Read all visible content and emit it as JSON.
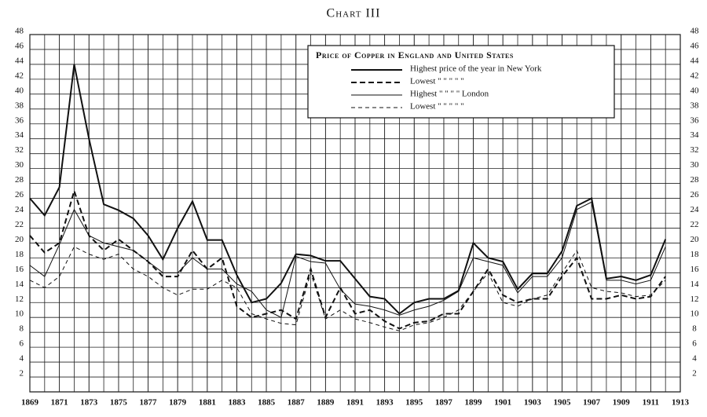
{
  "chart_data": {
    "type": "line",
    "title": "Chart III",
    "legend_title": "Price of Copper in England and United States",
    "x": [
      1869,
      1870,
      1871,
      1872,
      1873,
      1874,
      1875,
      1876,
      1877,
      1878,
      1879,
      1880,
      1881,
      1882,
      1883,
      1884,
      1885,
      1886,
      1887,
      1888,
      1889,
      1890,
      1891,
      1892,
      1893,
      1894,
      1895,
      1896,
      1897,
      1898,
      1899,
      1900,
      1901,
      1902,
      1903,
      1904,
      1905,
      1906,
      1907,
      1908,
      1909,
      1910,
      1911,
      1912
    ],
    "xlim": [
      1869,
      1913
    ],
    "xticks": [
      1869,
      1871,
      1873,
      1875,
      1877,
      1879,
      1881,
      1883,
      1885,
      1887,
      1889,
      1891,
      1893,
      1895,
      1897,
      1899,
      1901,
      1903,
      1905,
      1907,
      1909,
      1911,
      1913
    ],
    "ylim": [
      0,
      48
    ],
    "yticks": [
      2,
      4,
      6,
      8,
      10,
      12,
      14,
      16,
      18,
      20,
      22,
      24,
      26,
      28,
      30,
      32,
      34,
      36,
      38,
      40,
      42,
      44,
      46,
      48
    ],
    "grid": true,
    "legend": "upper right",
    "series": [
      {
        "name": "Highest price of the year in New York",
        "color": "#111111",
        "width": 2,
        "dash": false,
        "values": [
          26,
          23.7,
          27.5,
          44,
          34,
          25.2,
          24.4,
          23.3,
          21,
          17.8,
          22,
          25.6,
          20.4,
          20.4,
          15.7,
          12,
          12.5,
          14.6,
          18.5,
          18.3,
          17.6,
          17.6,
          15.2,
          12.8,
          12.5,
          10.5,
          12,
          12.5,
          12.5,
          13.6,
          20,
          18,
          17.5,
          13.8,
          15.9,
          15.9,
          18.9,
          25,
          26,
          15.2,
          15.5,
          15,
          15.7,
          20.5
        ]
      },
      {
        "name": "Lowest \" \" \" \" \"",
        "color": "#111111",
        "width": 2,
        "dash": true,
        "values": [
          21,
          18.7,
          20,
          27,
          21,
          19,
          20.5,
          19,
          17.5,
          15.5,
          15.5,
          19,
          16.5,
          18,
          11.5,
          10,
          10.5,
          11,
          9.8,
          16.5,
          10,
          14,
          10.5,
          11,
          9.5,
          8.5,
          9.3,
          9.5,
          10.5,
          10.5,
          13.5,
          16.5,
          13,
          12,
          12.5,
          12.5,
          15.5,
          18,
          12.5,
          12.5,
          13,
          12.5,
          12.8,
          15.5
        ]
      },
      {
        "name": "Highest \" \" \" \" London",
        "color": "#111111",
        "width": 1,
        "dash": false,
        "values": [
          17,
          15.5,
          19.8,
          24.5,
          21,
          20,
          19.5,
          19,
          17.5,
          16,
          16,
          18,
          16.5,
          16.5,
          14.5,
          13.5,
          11,
          10,
          18.2,
          17.5,
          17.3,
          13.8,
          11.8,
          11.5,
          11,
          10.3,
          11,
          11.5,
          12.3,
          13.5,
          18,
          17.5,
          17,
          13.3,
          15.5,
          15.5,
          18,
          24.5,
          25.5,
          15,
          15,
          14.5,
          15,
          19.5
        ]
      },
      {
        "name": "Lowest \" \" \" \" \"",
        "color": "#111111",
        "width": 1,
        "dash": true,
        "values": [
          15,
          14,
          15.5,
          19.5,
          18.5,
          17.8,
          18.5,
          16.5,
          15.5,
          14,
          13,
          13.8,
          13.8,
          15,
          14,
          10.5,
          9.8,
          9.2,
          9,
          16,
          9.8,
          11,
          9.8,
          9.3,
          8.7,
          8.2,
          9,
          9.3,
          10,
          11,
          13.5,
          16,
          12,
          11.5,
          12.5,
          13,
          16,
          19,
          14,
          13.5,
          13.3,
          12.8,
          13,
          15
        ]
      }
    ]
  }
}
